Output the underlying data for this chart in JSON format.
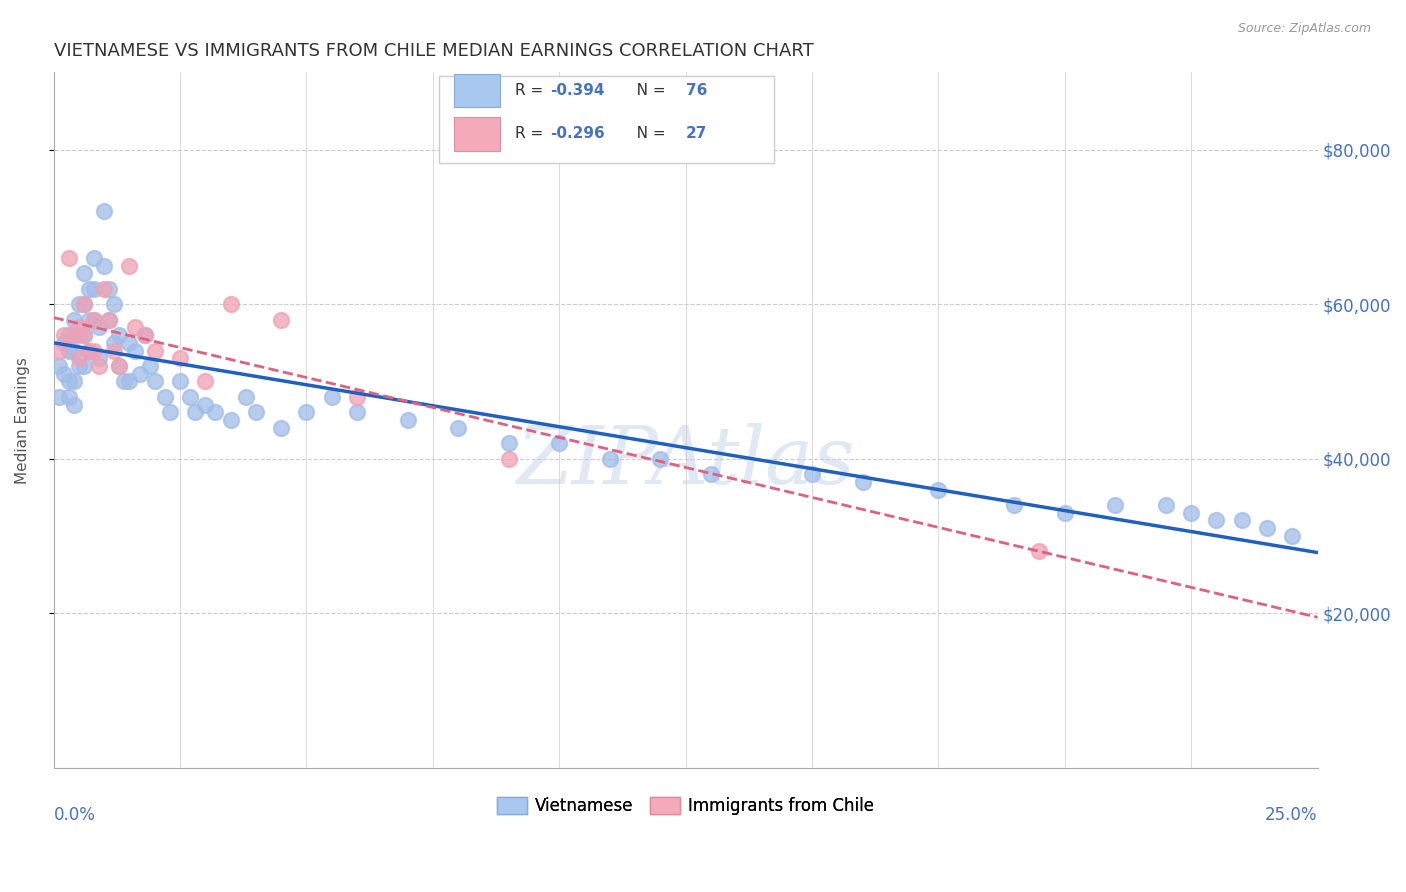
{
  "title": "VIETNAMESE VS IMMIGRANTS FROM CHILE MEDIAN EARNINGS CORRELATION CHART",
  "source": "Source: ZipAtlas.com",
  "ylabel": "Median Earnings",
  "yticks": [
    20000,
    40000,
    60000,
    80000
  ],
  "ytick_labels": [
    "$20,000",
    "$40,000",
    "$60,000",
    "$80,000"
  ],
  "xlim": [
    0.0,
    0.25
  ],
  "ylim": [
    0,
    90000
  ],
  "watermark": "ZIPAtlas",
  "legend1_color": "#a8c8f0",
  "legend2_color": "#f4aab8",
  "blue_dot_color": "#a0bce8",
  "pink_dot_color": "#f0a0b4",
  "trend_blue": "#2060c0",
  "trend_pink": "#e06080",
  "R1": "-0.394",
  "N1": "76",
  "R2": "-0.296",
  "N2": "27",
  "label1": "Vietnamese",
  "label2": "Immigrants from Chile",
  "blue_x": [
    0.001,
    0.001,
    0.002,
    0.002,
    0.003,
    0.003,
    0.003,
    0.003,
    0.004,
    0.004,
    0.004,
    0.004,
    0.005,
    0.005,
    0.005,
    0.006,
    0.006,
    0.006,
    0.006,
    0.007,
    0.007,
    0.007,
    0.008,
    0.008,
    0.008,
    0.009,
    0.009,
    0.01,
    0.01,
    0.011,
    0.011,
    0.012,
    0.012,
    0.013,
    0.013,
    0.014,
    0.015,
    0.015,
    0.016,
    0.017,
    0.018,
    0.019,
    0.02,
    0.022,
    0.023,
    0.025,
    0.027,
    0.028,
    0.03,
    0.032,
    0.035,
    0.038,
    0.04,
    0.045,
    0.05,
    0.055,
    0.06,
    0.07,
    0.08,
    0.09,
    0.1,
    0.11,
    0.12,
    0.13,
    0.15,
    0.16,
    0.175,
    0.19,
    0.2,
    0.21,
    0.22,
    0.225,
    0.23,
    0.235,
    0.24,
    0.245
  ],
  "blue_y": [
    52000,
    48000,
    55000,
    51000,
    50000,
    54000,
    56000,
    48000,
    58000,
    54000,
    50000,
    47000,
    60000,
    56000,
    52000,
    64000,
    60000,
    56000,
    52000,
    62000,
    58000,
    54000,
    66000,
    62000,
    58000,
    57000,
    53000,
    72000,
    65000,
    62000,
    58000,
    60000,
    55000,
    56000,
    52000,
    50000,
    55000,
    50000,
    54000,
    51000,
    56000,
    52000,
    50000,
    48000,
    46000,
    50000,
    48000,
    46000,
    47000,
    46000,
    45000,
    48000,
    46000,
    44000,
    46000,
    48000,
    46000,
    45000,
    44000,
    42000,
    42000,
    40000,
    40000,
    38000,
    38000,
    37000,
    36000,
    34000,
    33000,
    34000,
    34000,
    33000,
    32000,
    32000,
    31000,
    30000
  ],
  "pink_x": [
    0.001,
    0.002,
    0.003,
    0.004,
    0.005,
    0.005,
    0.006,
    0.006,
    0.007,
    0.008,
    0.008,
    0.009,
    0.01,
    0.011,
    0.012,
    0.013,
    0.015,
    0.016,
    0.018,
    0.02,
    0.025,
    0.03,
    0.035,
    0.045,
    0.06,
    0.09,
    0.195
  ],
  "pink_y": [
    54000,
    56000,
    66000,
    56000,
    57000,
    53000,
    60000,
    56000,
    54000,
    58000,
    54000,
    52000,
    62000,
    58000,
    54000,
    52000,
    65000,
    57000,
    56000,
    54000,
    53000,
    50000,
    60000,
    58000,
    48000,
    40000,
    28000
  ]
}
